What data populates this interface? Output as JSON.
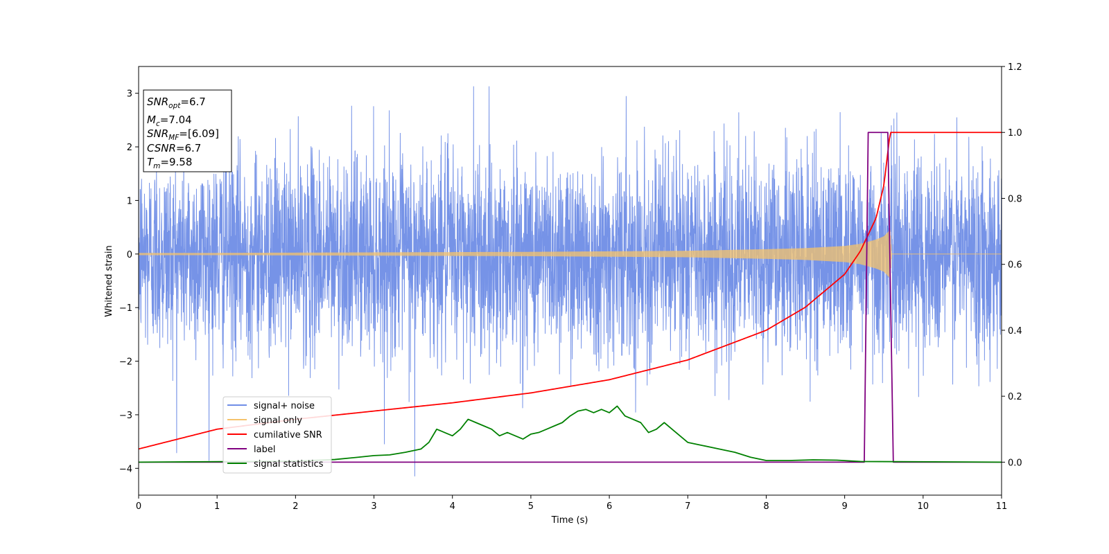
{
  "chart_data": {
    "type": "line",
    "xlabel": "Time (s)",
    "ylabel": "Whitened strain",
    "xlim": [
      0,
      11
    ],
    "ylim": [
      -4.5,
      3.5
    ],
    "y2lim": [
      -0.1,
      1.2
    ],
    "x_ticks": [
      "0",
      "1",
      "2",
      "3",
      "4",
      "5",
      "6",
      "7",
      "8",
      "9",
      "10",
      "11"
    ],
    "y_ticks": [
      "−4",
      "−3",
      "−2",
      "−1",
      "0",
      "1",
      "2",
      "3"
    ],
    "y2_ticks": [
      "0.0",
      "0.2",
      "0.4",
      "0.6",
      "0.8",
      "1.0",
      "1.2"
    ],
    "grid": false,
    "legend_position": "lower-left",
    "info_box": {
      "snr_opt": {
        "main": "SNR",
        "sub": "opt",
        "value": "=6.7"
      },
      "mc": {
        "main": "M",
        "sub": "c",
        "value": "=7.04"
      },
      "snr_mf": {
        "main": "SNR",
        "sub": "MF",
        "value": "=[6.09]"
      },
      "csnr": {
        "main": "CSNR",
        "value": "=6.7"
      },
      "tm": {
        "main": "T",
        "sub": "m",
        "value": "=9.58"
      }
    },
    "series": [
      {
        "name": "signal+ noise",
        "axis": "left",
        "color": "#6f8de6",
        "description_points": "white noise, std ~0.95, extremes about -4.15 at t=3.52 and 3.13 at t=4.27"
      },
      {
        "name": "signal only",
        "axis": "left",
        "color": "#f5c36b",
        "envelope_x": [
          0,
          1,
          2,
          3,
          4,
          5,
          6,
          7,
          8,
          8.5,
          9,
          9.2,
          9.4,
          9.5,
          9.58,
          9.6,
          11
        ],
        "envelope_y": [
          0.02,
          0.02,
          0.025,
          0.03,
          0.035,
          0.04,
          0.05,
          0.06,
          0.09,
          0.11,
          0.15,
          0.19,
          0.27,
          0.33,
          0.45,
          0.0,
          0.0
        ]
      },
      {
        "name": "cumilative SNR",
        "axis": "right",
        "color": "#ff0000",
        "x": [
          0,
          1,
          2,
          3,
          4,
          5,
          6,
          7,
          8,
          8.5,
          9,
          9.2,
          9.4,
          9.5,
          9.58,
          11
        ],
        "y": [
          0.04,
          0.1,
          0.13,
          0.155,
          0.18,
          0.21,
          0.25,
          0.31,
          0.4,
          0.47,
          0.57,
          0.64,
          0.74,
          0.84,
          1.0,
          1.0
        ]
      },
      {
        "name": "label",
        "axis": "right",
        "color": "#800080",
        "x": [
          0,
          9.25,
          9.3,
          9.55,
          9.62,
          11
        ],
        "y": [
          0,
          0,
          1,
          1,
          0,
          0
        ]
      },
      {
        "name": "signal statistics",
        "axis": "right",
        "color": "#008000",
        "x": [
          0,
          2.0,
          2.5,
          2.8,
          3.0,
          3.2,
          3.4,
          3.5,
          3.6,
          3.7,
          3.8,
          3.9,
          4.0,
          4.1,
          4.2,
          4.3,
          4.4,
          4.5,
          4.6,
          4.7,
          4.8,
          4.9,
          5.0,
          5.1,
          5.2,
          5.3,
          5.4,
          5.5,
          5.6,
          5.7,
          5.8,
          5.9,
          6.0,
          6.1,
          6.2,
          6.3,
          6.4,
          6.5,
          6.6,
          6.7,
          6.8,
          6.9,
          7.0,
          7.2,
          7.4,
          7.6,
          7.8,
          8.0,
          8.3,
          8.6,
          8.9,
          9.2,
          11
        ],
        "y": [
          0.0,
          0.003,
          0.008,
          0.015,
          0.02,
          0.022,
          0.03,
          0.035,
          0.04,
          0.06,
          0.1,
          0.09,
          0.08,
          0.1,
          0.13,
          0.12,
          0.11,
          0.1,
          0.08,
          0.09,
          0.08,
          0.07,
          0.085,
          0.09,
          0.1,
          0.11,
          0.12,
          0.14,
          0.155,
          0.16,
          0.15,
          0.16,
          0.15,
          0.17,
          0.14,
          0.13,
          0.12,
          0.09,
          0.1,
          0.12,
          0.1,
          0.08,
          0.06,
          0.05,
          0.04,
          0.03,
          0.015,
          0.005,
          0.005,
          0.007,
          0.006,
          0.002,
          0.0
        ]
      }
    ]
  }
}
